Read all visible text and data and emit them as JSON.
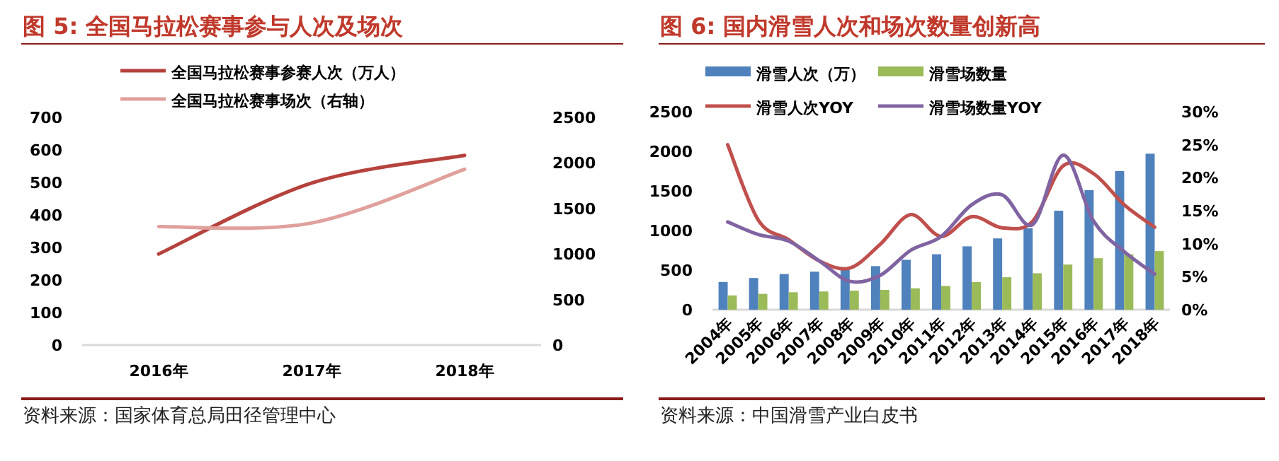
{
  "chart_data": [
    {
      "type": "line",
      "title": "图 5:  全国马拉松赛事参与人次及场次",
      "annotations": [
        "资料来源：国家体育总局田径管理中心"
      ],
      "categories": [
        "2016年",
        "2017年",
        "2018年"
      ],
      "legend": "top",
      "ylim": [
        0,
        700
      ],
      "yticks": [
        0,
        100,
        200,
        300,
        400,
        500,
        600,
        700
      ],
      "y2lim": [
        0,
        2500
      ],
      "y2ticks": [
        0,
        500,
        1000,
        1500,
        2000,
        2500
      ],
      "series": [
        {
          "name": "全国马拉松赛事参赛人次（万人）",
          "color": "#b5423c",
          "values": [
            280,
            498,
            583
          ]
        },
        {
          "name": "全国马拉松赛事场次（右轴）",
          "color": "#e0a09c",
          "axis": "y2",
          "values": [
            1300,
            1340,
            1930
          ]
        }
      ]
    },
    {
      "type": "bar",
      "title": "图 6:  国内滑雪人次和场次数量创新高",
      "annotations": [
        "资料来源：中国滑雪产业白皮书"
      ],
      "categories": [
        "2004年",
        "2005年",
        "2006年",
        "2007年",
        "2008年",
        "2009年",
        "2010年",
        "2011年",
        "2012年",
        "2013年",
        "2014年",
        "2015年",
        "2016年",
        "2017年",
        "2018年"
      ],
      "legend": "top",
      "ylim": [
        0,
        2500
      ],
      "yticks": [
        0,
        500,
        1000,
        1500,
        2000,
        2500
      ],
      "y2lim": [
        0,
        30
      ],
      "y2ticks": [
        {
          "value": 0,
          "label": "0%"
        },
        {
          "value": 5,
          "label": "5%"
        },
        {
          "value": 10,
          "label": "10%"
        },
        {
          "value": 15,
          "label": "15%"
        },
        {
          "value": 20,
          "label": "20%"
        },
        {
          "value": 25,
          "label": "25%"
        },
        {
          "value": 30,
          "label": "30%"
        }
      ],
      "series": [
        {
          "name": "滑雪人次（万）",
          "color": "#4f81bd",
          "values": [
            350,
            400,
            450,
            480,
            510,
            550,
            630,
            700,
            800,
            900,
            1030,
            1250,
            1510,
            1750,
            1970
          ]
        },
        {
          "name": "滑雪场数量",
          "color": "#9bbb59",
          "values": [
            180,
            200,
            220,
            230,
            240,
            250,
            270,
            300,
            350,
            410,
            460,
            570,
            650,
            700,
            740
          ]
        },
        {
          "name": "滑雪人次YOY",
          "type": "line",
          "axis": "y2",
          "color": "#c0504d",
          "values": [
            25,
            13.6,
            10.6,
            7.4,
            6.3,
            9.9,
            14.4,
            11.1,
            14.1,
            12.4,
            13.4,
            21.8,
            20.6,
            15.9,
            12.5
          ]
        },
        {
          "name": "滑雪场数量YOY",
          "type": "line",
          "axis": "y2",
          "color": "#8064a2",
          "values": [
            13.3,
            11.4,
            10.4,
            7.4,
            4.3,
            5.2,
            9,
            11.1,
            15.9,
            17.4,
            12.9,
            23.4,
            13.4,
            8.8,
            5.4
          ]
        }
      ]
    }
  ]
}
